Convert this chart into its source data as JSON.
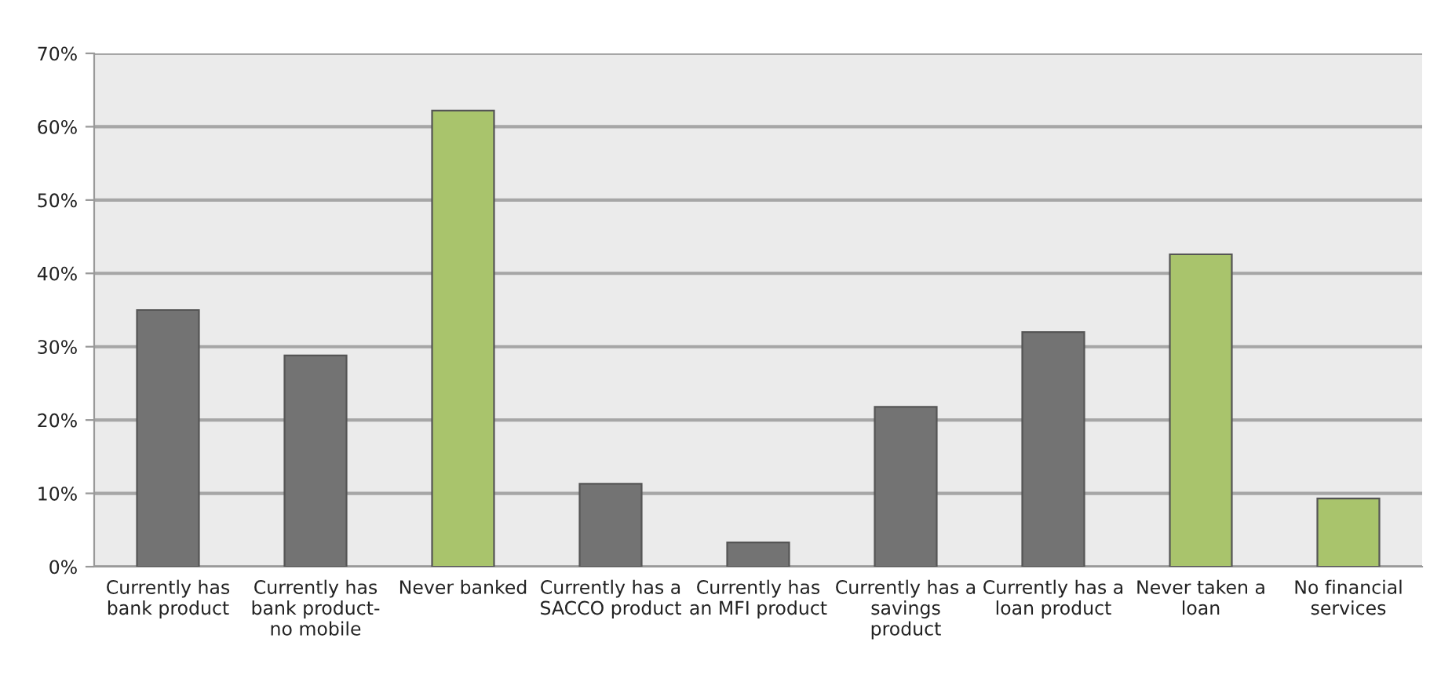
{
  "chart_data": {
    "type": "bar",
    "categories": [
      "Currently has\nbank product",
      "Currently has\nbank product-\nno mobile",
      "Never banked",
      "Currently has a\nSACCO product",
      "Currently has\nan MFI product",
      "Currently has a\nsavings\nproduct",
      "Currently has a\nloan product",
      "Never taken a\nloan",
      "No financial\nservices"
    ],
    "values": [
      35.0,
      28.8,
      62.2,
      11.3,
      3.3,
      21.8,
      32.0,
      42.6,
      9.3
    ],
    "colors": [
      "#737373",
      "#737373",
      "#a9c46c",
      "#737373",
      "#737373",
      "#737373",
      "#737373",
      "#a9c46c",
      "#a9c46c"
    ],
    "ylim": [
      0,
      70
    ],
    "yticks": [
      {
        "value": 0,
        "label": "0%"
      },
      {
        "value": 10,
        "label": "10%"
      },
      {
        "value": 20,
        "label": "20%"
      },
      {
        "value": 30,
        "label": "30%"
      },
      {
        "value": 40,
        "label": "40%"
      },
      {
        "value": 50,
        "label": "50%"
      },
      {
        "value": 60,
        "label": "60%"
      },
      {
        "value": 70,
        "label": "70%"
      }
    ],
    "grid": "y"
  }
}
